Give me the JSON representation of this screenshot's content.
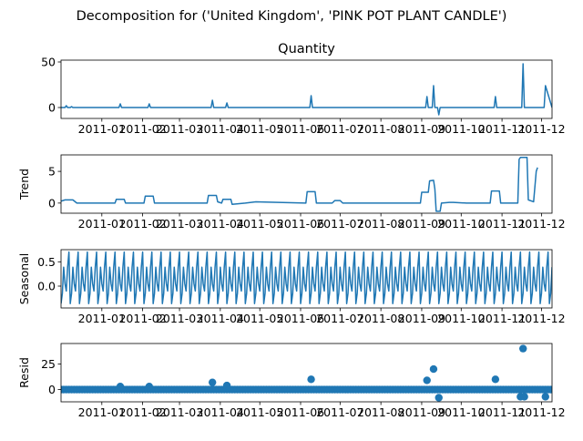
{
  "chart_data": {
    "type": "line",
    "suptitle": "Decomposition for ('United Kingdom', 'PINK POT PLANT CANDLE')",
    "x_range": [
      "2010-12-01",
      "2011-12-09"
    ],
    "x_ticks": [
      "2011-01",
      "2011-02",
      "2011-03",
      "2011-04",
      "2011-05",
      "2011-06",
      "2011-07",
      "2011-08",
      "2011-09",
      "2011-10",
      "2011-11",
      "2011-12"
    ],
    "panels": [
      {
        "key": "observed",
        "title": "Quantity",
        "ylabel": "",
        "style": "line",
        "ylim": [
          -12,
          52
        ],
        "yticks": [
          0,
          50
        ],
        "points": [
          [
            "2010-12-01",
            0
          ],
          [
            "2010-12-04",
            0
          ],
          [
            "2010-12-05",
            2
          ],
          [
            "2010-12-06",
            0
          ],
          [
            "2010-12-08",
            0
          ],
          [
            "2010-12-09",
            1
          ],
          [
            "2010-12-10",
            0
          ],
          [
            "2011-01-14",
            0
          ],
          [
            "2011-01-15",
            4
          ],
          [
            "2011-01-16",
            0
          ],
          [
            "2011-02-05",
            0
          ],
          [
            "2011-02-06",
            4
          ],
          [
            "2011-02-07",
            0
          ],
          [
            "2011-03-25",
            0
          ],
          [
            "2011-03-26",
            8
          ],
          [
            "2011-03-27",
            0
          ],
          [
            "2011-04-05",
            0
          ],
          [
            "2011-04-06",
            5
          ],
          [
            "2011-04-07",
            0
          ],
          [
            "2011-06-08",
            0
          ],
          [
            "2011-06-09",
            13
          ],
          [
            "2011-06-10",
            0
          ],
          [
            "2011-09-04",
            0
          ],
          [
            "2011-09-05",
            12
          ],
          [
            "2011-09-06",
            0
          ],
          [
            "2011-09-09",
            0
          ],
          [
            "2011-09-10",
            24
          ],
          [
            "2011-09-11",
            0
          ],
          [
            "2011-09-13",
            0
          ],
          [
            "2011-09-14",
            -8
          ],
          [
            "2011-09-15",
            0
          ],
          [
            "2011-10-26",
            0
          ],
          [
            "2011-10-27",
            12
          ],
          [
            "2011-10-28",
            0
          ],
          [
            "2011-11-16",
            0
          ],
          [
            "2011-11-17",
            48
          ],
          [
            "2011-11-18",
            0
          ],
          [
            "2011-12-03",
            0
          ],
          [
            "2011-12-04",
            24
          ],
          [
            "2011-12-09",
            0
          ]
        ]
      },
      {
        "key": "trend",
        "title": "",
        "ylabel": "Trend",
        "style": "line",
        "ylim": [
          -1.6,
          7.6
        ],
        "yticks": [
          0,
          5
        ],
        "points": [
          [
            "2010-12-01",
            0.3
          ],
          [
            "2010-12-04",
            0.5
          ],
          [
            "2010-12-10",
            0.5
          ],
          [
            "2010-12-13",
            0
          ],
          [
            "2011-01-11",
            0
          ],
          [
            "2011-01-12",
            0.6
          ],
          [
            "2011-01-18",
            0.6
          ],
          [
            "2011-01-19",
            0
          ],
          [
            "2011-02-02",
            0
          ],
          [
            "2011-02-03",
            1.1
          ],
          [
            "2011-02-09",
            1.1
          ],
          [
            "2011-02-10",
            0
          ],
          [
            "2011-03-22",
            0
          ],
          [
            "2011-03-23",
            1.2
          ],
          [
            "2011-03-29",
            1.2
          ],
          [
            "2011-03-30",
            0.2
          ],
          [
            "2011-04-02",
            0
          ],
          [
            "2011-04-03",
            0.6
          ],
          [
            "2011-04-09",
            0.6
          ],
          [
            "2011-04-10",
            -0.2
          ],
          [
            "2011-04-20",
            0
          ],
          [
            "2011-04-28",
            0.2
          ],
          [
            "2011-05-15",
            0.1
          ],
          [
            "2011-06-05",
            0
          ],
          [
            "2011-06-06",
            1.8
          ],
          [
            "2011-06-12",
            1.8
          ],
          [
            "2011-06-13",
            0
          ],
          [
            "2011-06-25",
            0
          ],
          [
            "2011-06-27",
            0.4
          ],
          [
            "2011-07-01",
            0.4
          ],
          [
            "2011-07-03",
            0
          ],
          [
            "2011-08-31",
            0
          ],
          [
            "2011-09-01",
            1.7
          ],
          [
            "2011-09-06",
            1.7
          ],
          [
            "2011-09-07",
            3.5
          ],
          [
            "2011-09-10",
            3.6
          ],
          [
            "2011-09-11",
            2.2
          ],
          [
            "2011-09-12",
            -1.3
          ],
          [
            "2011-09-15",
            -1.3
          ],
          [
            "2011-09-16",
            0
          ],
          [
            "2011-09-22",
            0.1
          ],
          [
            "2011-09-25",
            0.1
          ],
          [
            "2011-10-05",
            0
          ],
          [
            "2011-10-23",
            0
          ],
          [
            "2011-10-24",
            1.9
          ],
          [
            "2011-10-30",
            1.9
          ],
          [
            "2011-10-31",
            0
          ],
          [
            "2011-11-13",
            0
          ],
          [
            "2011-11-14",
            6.9
          ],
          [
            "2011-11-15",
            7.2
          ],
          [
            "2011-11-20",
            7.2
          ],
          [
            "2011-11-21",
            0.5
          ],
          [
            "2011-11-25",
            0.2
          ],
          [
            "2011-11-27",
            5
          ],
          [
            "2011-11-28",
            5.6
          ]
        ]
      },
      {
        "key": "seasonal",
        "title": "",
        "ylabel": "Seasonal",
        "style": "weekly",
        "ylim": [
          -0.45,
          0.75
        ],
        "yticks": [
          0,
          0.5
        ],
        "yticklabels": [
          "0.0",
          "0.5"
        ],
        "weekly_pattern": [
          -0.36,
          -0.15,
          0.39,
          0.05,
          -0.1,
          0.39,
          0.7
        ]
      },
      {
        "key": "resid",
        "title": "",
        "ylabel": "Resid",
        "style": "scatter",
        "ylim": [
          -12,
          45
        ],
        "yticks": [
          0,
          25
        ],
        "points": [
          [
            "2011-01-15",
            3
          ],
          [
            "2011-02-06",
            3
          ],
          [
            "2011-03-26",
            7
          ],
          [
            "2011-04-06",
            4
          ],
          [
            "2011-06-09",
            10
          ],
          [
            "2011-09-05",
            9
          ],
          [
            "2011-09-10",
            20
          ],
          [
            "2011-09-14",
            -8
          ],
          [
            "2011-10-27",
            10
          ],
          [
            "2011-11-17",
            40
          ],
          [
            "2011-11-15",
            -7
          ],
          [
            "2011-11-18",
            -7
          ],
          [
            "2011-12-04",
            -7
          ]
        ]
      }
    ]
  }
}
